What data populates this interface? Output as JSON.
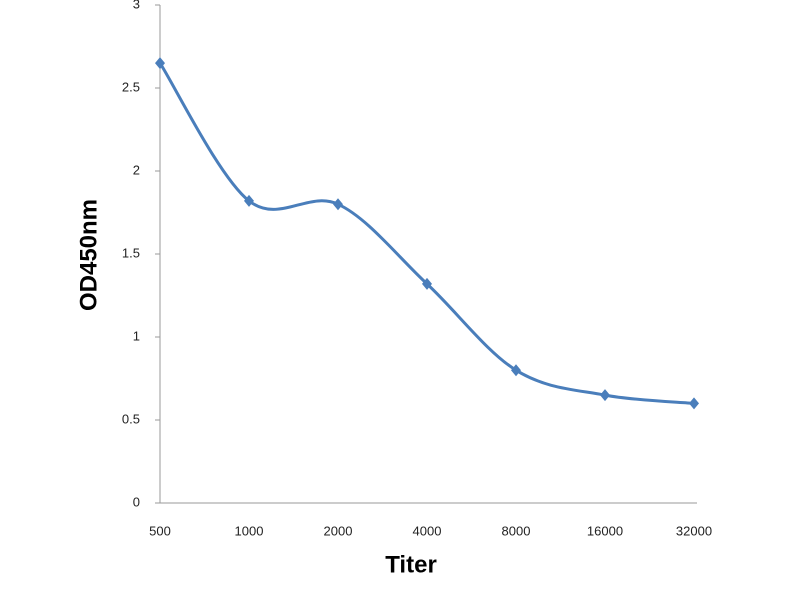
{
  "chart_data": {
    "type": "line",
    "x_label": "Titer",
    "y_label": "OD450nm",
    "categories": [
      "500",
      "1000",
      "2000",
      "4000",
      "8000",
      "16000",
      "32000"
    ],
    "series": [
      {
        "name": "OD450nm",
        "color": "#4a7ebb",
        "values": [
          2.65,
          1.82,
          1.8,
          1.32,
          0.8,
          0.65,
          0.6
        ]
      }
    ],
    "ylim": [
      0,
      3
    ],
    "yticks": [
      0,
      0.5,
      1,
      1.5,
      2,
      2.5,
      3
    ],
    "grid": false,
    "smooth": true
  }
}
